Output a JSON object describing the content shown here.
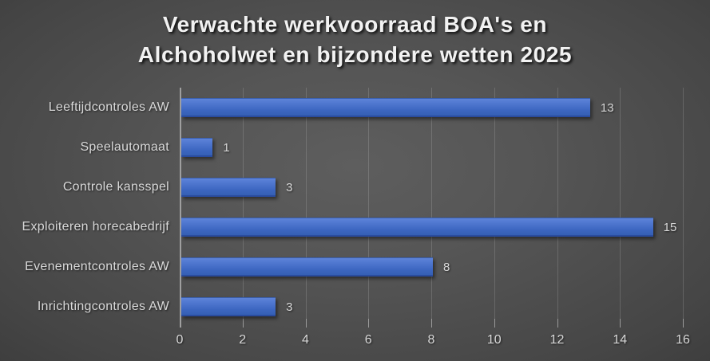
{
  "title": {
    "line1": "Verwachte werkvoorraad BOA's en",
    "line2": "Alchoholwet en bijzondere wetten 2025"
  },
  "chart_data": {
    "type": "bar",
    "orientation": "horizontal",
    "title": "Verwachte werkvoorraad BOA's en Alchoholwet en bijzondere wetten 2025",
    "categories": [
      "Leeftijdcontroles AW",
      "Speelautomaat",
      "Controle kansspel",
      "Exploiteren horecabedrijf",
      "Evenementcontroles AW",
      "Inrichtingcontroles AW"
    ],
    "values": [
      13,
      1,
      3,
      15,
      8,
      3
    ],
    "xlabel": "",
    "ylabel": "",
    "xlim": [
      0,
      16
    ],
    "xticks": [
      "0",
      "2",
      "4",
      "6",
      "8",
      "10",
      "12",
      "14",
      "16"
    ],
    "grid": "vertical-gridlines-on",
    "legend": "none",
    "colors": {
      "bar": "#4472c4",
      "bar_gradient_top": "#5d83d9",
      "bar_gradient_bottom": "#3560b4",
      "labels": "#d9d9d9",
      "title_text": "#f2f2f2",
      "axis_line": "#9f9f9f",
      "background_center": "#595959",
      "background_edge": "#242424"
    }
  }
}
